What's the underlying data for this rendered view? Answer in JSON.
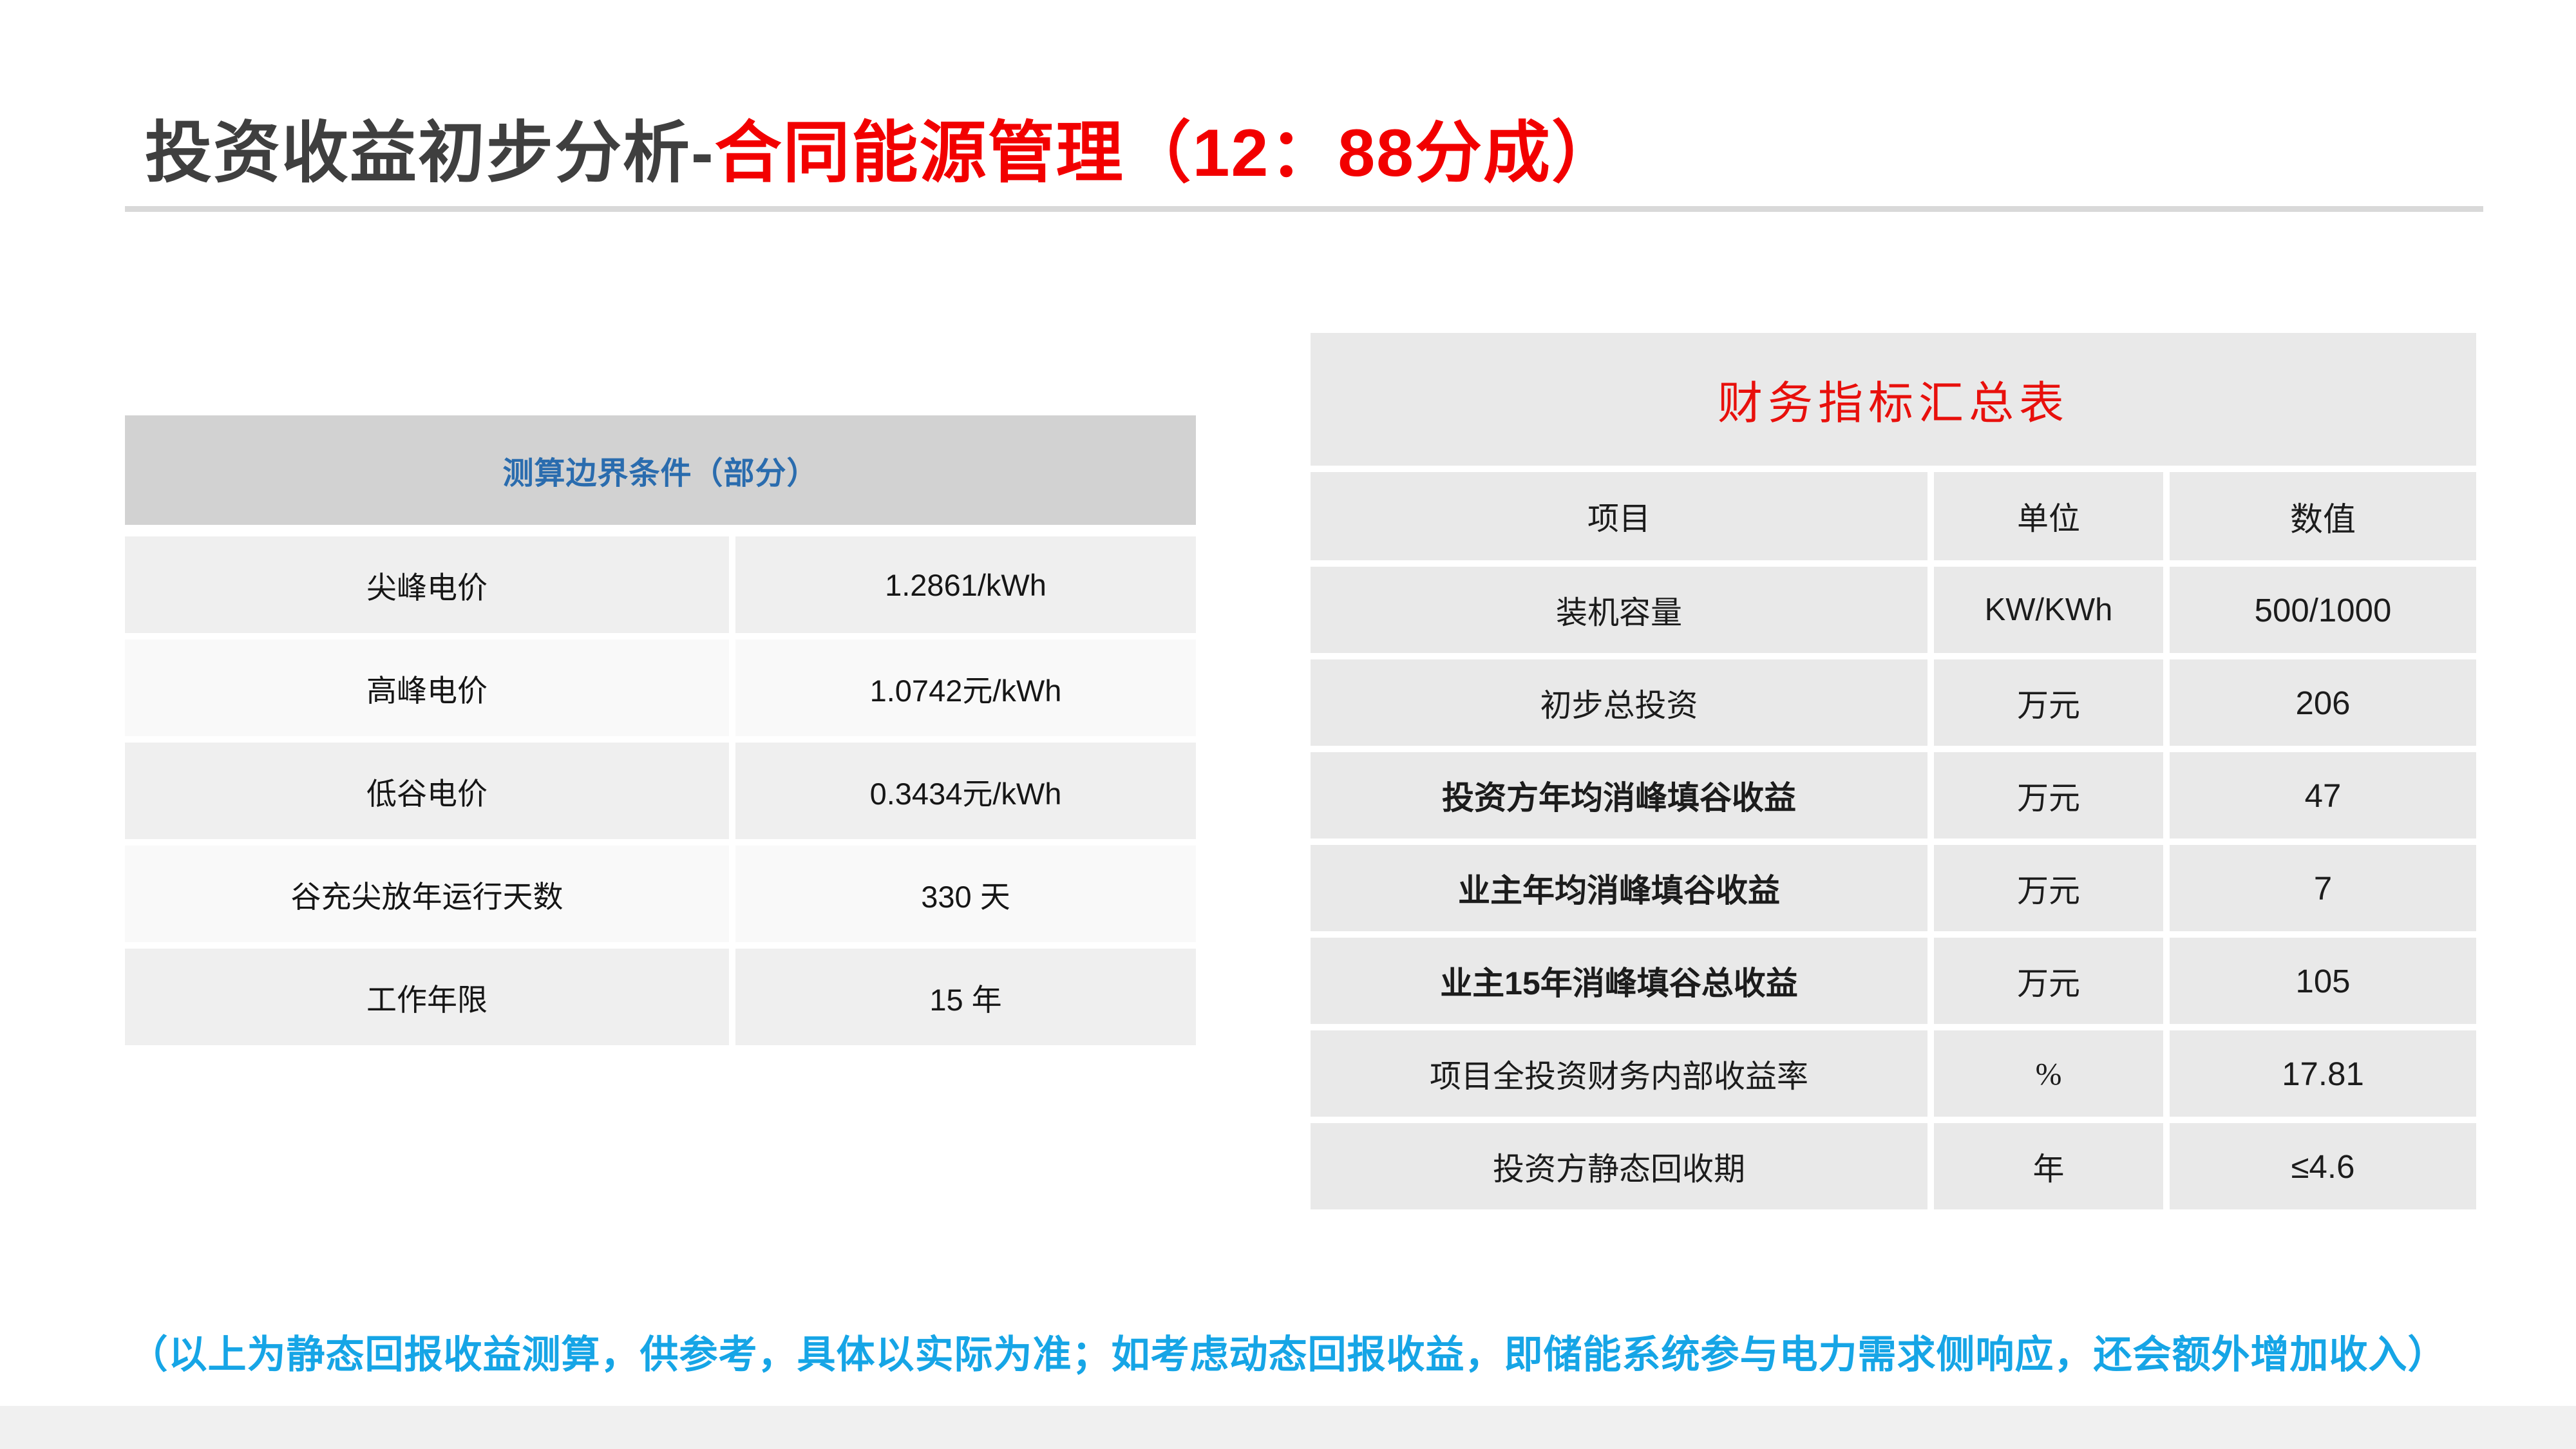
{
  "title": {
    "black": "投资收益初步分析-",
    "red": "合同能源管理（12：88分成）"
  },
  "left_table": {
    "header": "测算边界条件（部分）",
    "rows": [
      {
        "label": "尖峰电价",
        "value": "1.2861/kWh"
      },
      {
        "label": "高峰电价",
        "value": "1.0742元/kWh"
      },
      {
        "label": "低谷电价",
        "value": "0.3434元/kWh"
      },
      {
        "label": "谷充尖放年运行天数",
        "value": "330 天"
      },
      {
        "label": "工作年限",
        "value": "15 年"
      }
    ]
  },
  "right_table": {
    "title": "财务指标汇总表",
    "columns": [
      "项目",
      "单位",
      "数值"
    ],
    "rows": [
      {
        "item": "装机容量",
        "unit": "KW/KWh",
        "value": "500/1000"
      },
      {
        "item": "初步总投资",
        "unit": "万元",
        "value": "206"
      },
      {
        "item": "投资方年均消峰填谷收益",
        "unit": "万元",
        "value": "47"
      },
      {
        "item": "业主年均消峰填谷收益",
        "unit": "万元",
        "value": "7"
      },
      {
        "item": "业主15年消峰填谷总收益",
        "unit": "万元",
        "value": "105"
      },
      {
        "item": "项目全投资财务内部收益率",
        "unit": "%",
        "value": "17.81"
      },
      {
        "item": "投资方静态回收期",
        "unit": "年",
        "value": "≤4.6"
      }
    ]
  },
  "footnote": "（以上为静态回报收益测算，供参考，具体以实际为准；如考虑动态回报收益，即储能系统参与电力需求侧响应，还会额外增加收入）",
  "colors": {
    "title_dark": "#3f3f3f",
    "title_red": "#f20000",
    "left_header_blue": "#2a6cae",
    "left_header_bg": "#d2d2d2",
    "row_bg_dark": "#efefef",
    "row_bg_light": "#f9f9f9",
    "right_cell_bg": "#e9e9e9",
    "right_title_red": "#e8100c",
    "note_blue": "#16a5e6",
    "rule_gray": "#d9d9d9",
    "footer_bar_gray": "#f0f0f0"
  }
}
